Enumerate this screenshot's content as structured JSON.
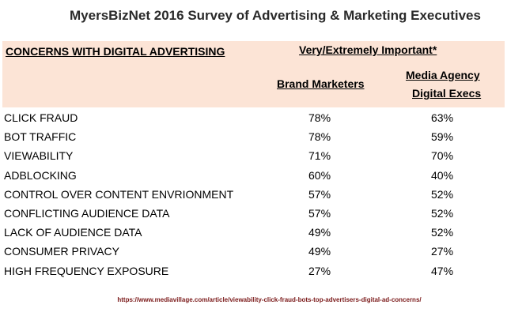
{
  "title": "MyersBizNet 2016 Survey of Advertising & Marketing Executives",
  "header": {
    "concerns": "CONCERNS WITH DIGITAL ADVERTISING",
    "importance": "Very/Extremely Important*",
    "col_brand": "Brand Marketers",
    "col_agency_1": "Media Agency",
    "col_agency_2": "Digital Execs"
  },
  "header_bg": "#fce4d6",
  "rows": [
    {
      "concern": "CLICK FRAUD",
      "brand": "78%",
      "agency": "63%"
    },
    {
      "concern": "BOT TRAFFIC",
      "brand": "78%",
      "agency": "59%"
    },
    {
      "concern": "VIEWABILITY",
      "brand": "71%",
      "agency": "70%"
    },
    {
      "concern": "ADBLOCKING",
      "brand": "60%",
      "agency": "40%"
    },
    {
      "concern": "CONTROL OVER CONTENT ENVRIONMENT",
      "brand": "57%",
      "agency": "52%"
    },
    {
      "concern": "CONFLICTING AUDIENCE DATA",
      "brand": "57%",
      "agency": "52%"
    },
    {
      "concern": "LACK OF AUDIENCE DATA",
      "brand": "49%",
      "agency": "52%"
    },
    {
      "concern": "CONSUMER PRIVACY",
      "brand": "49%",
      "agency": "27%"
    },
    {
      "concern": "HIGH FREQUENCY EXPOSURE",
      "brand": "27%",
      "agency": "47%"
    }
  ],
  "source": "https://www.mediavillage.com/article/viewability-click-fraud-bots-top-advertisers-digital-ad-concerns/"
}
